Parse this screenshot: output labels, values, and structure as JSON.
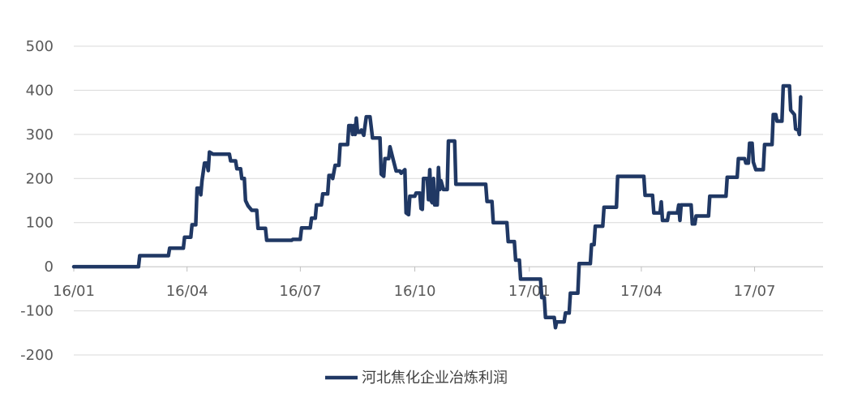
{
  "chart_data": {
    "type": "line",
    "title": "",
    "xlabel": "",
    "ylabel": "",
    "ylim": [
      -200,
      500
    ],
    "yticks": [
      -200,
      -100,
      0,
      100,
      200,
      300,
      400,
      500
    ],
    "x_ticks": [
      {
        "x": 0,
        "label": "16/01"
      },
      {
        "x": 91,
        "label": "16/04"
      },
      {
        "x": 182,
        "label": "16/07"
      },
      {
        "x": 274,
        "label": "16/10"
      },
      {
        "x": 366,
        "label": "17/01"
      },
      {
        "x": 456,
        "label": "17/04"
      },
      {
        "x": 547,
        "label": "17/07"
      }
    ],
    "xlim": [
      0,
      602
    ],
    "grid": true,
    "legend_position": "bottom",
    "colors": {
      "line": "#203864",
      "grid": "#d9d9d9"
    },
    "series": [
      {
        "name": "河北焦化企业冶炼利润",
        "points": [
          [
            0,
            0
          ],
          [
            52,
            0
          ],
          [
            53,
            25
          ],
          [
            76,
            25
          ],
          [
            77,
            42
          ],
          [
            88,
            42
          ],
          [
            89,
            67
          ],
          [
            94,
            67
          ],
          [
            95,
            95
          ],
          [
            98,
            95
          ],
          [
            99,
            178
          ],
          [
            101,
            178
          ],
          [
            102,
            163
          ],
          [
            103,
            195
          ],
          [
            105,
            235
          ],
          [
            107,
            235
          ],
          [
            108,
            218
          ],
          [
            109,
            260
          ],
          [
            112,
            255
          ],
          [
            125,
            255
          ],
          [
            126,
            240
          ],
          [
            130,
            240
          ],
          [
            131,
            222
          ],
          [
            134,
            222
          ],
          [
            135,
            200
          ],
          [
            137,
            200
          ],
          [
            138,
            150
          ],
          [
            140,
            138
          ],
          [
            143,
            128
          ],
          [
            147,
            128
          ],
          [
            148,
            87
          ],
          [
            154,
            87
          ],
          [
            155,
            60
          ],
          [
            175,
            60
          ],
          [
            176,
            62
          ],
          [
            182,
            62
          ],
          [
            183,
            88
          ],
          [
            190,
            88
          ],
          [
            191,
            110
          ],
          [
            194,
            110
          ],
          [
            195,
            140
          ],
          [
            199,
            140
          ],
          [
            200,
            165
          ],
          [
            204,
            165
          ],
          [
            205,
            207
          ],
          [
            207,
            207
          ],
          [
            208,
            200
          ],
          [
            210,
            230
          ],
          [
            213,
            230
          ],
          [
            214,
            277
          ],
          [
            220,
            277
          ],
          [
            221,
            320
          ],
          [
            223,
            320
          ],
          [
            224,
            300
          ],
          [
            225,
            320
          ],
          [
            226,
            300
          ],
          [
            227,
            337
          ],
          [
            228,
            305
          ],
          [
            230,
            305
          ],
          [
            231,
            310
          ],
          [
            233,
            298
          ],
          [
            235,
            340
          ],
          [
            238,
            340
          ],
          [
            240,
            292
          ],
          [
            246,
            292
          ],
          [
            247,
            210
          ],
          [
            249,
            205
          ],
          [
            250,
            245
          ],
          [
            253,
            245
          ],
          [
            254,
            272
          ],
          [
            256,
            250
          ],
          [
            259,
            217
          ],
          [
            262,
            217
          ],
          [
            263,
            212
          ],
          [
            266,
            220
          ],
          [
            267,
            122
          ],
          [
            269,
            118
          ],
          [
            270,
            160
          ],
          [
            274,
            160
          ],
          [
            275,
            167
          ],
          [
            278,
            167
          ],
          [
            279,
            132
          ],
          [
            280,
            130
          ],
          [
            281,
            200
          ],
          [
            284,
            200
          ],
          [
            285,
            152
          ],
          [
            286,
            220
          ],
          [
            287,
            150
          ],
          [
            288,
            145
          ],
          [
            289,
            200
          ],
          [
            290,
            140
          ],
          [
            292,
            140
          ],
          [
            293,
            225
          ],
          [
            294,
            175
          ],
          [
            295,
            195
          ],
          [
            297,
            175
          ],
          [
            300,
            175
          ],
          [
            301,
            285
          ],
          [
            306,
            285
          ],
          [
            307,
            187
          ],
          [
            331,
            187
          ],
          [
            332,
            148
          ],
          [
            336,
            148
          ],
          [
            337,
            100
          ],
          [
            348,
            100
          ],
          [
            349,
            57
          ],
          [
            354,
            57
          ],
          [
            355,
            15
          ],
          [
            358,
            15
          ],
          [
            359,
            -28
          ],
          [
            375,
            -28
          ],
          [
            376,
            -70
          ],
          [
            378,
            -70
          ],
          [
            379,
            -115
          ],
          [
            386,
            -115
          ],
          [
            387,
            -138
          ],
          [
            388,
            -125
          ],
          [
            394,
            -125
          ],
          [
            395,
            -105
          ],
          [
            398,
            -105
          ],
          [
            399,
            -60
          ],
          [
            405,
            -60
          ],
          [
            406,
            7
          ],
          [
            415,
            7
          ],
          [
            416,
            50
          ],
          [
            418,
            50
          ],
          [
            419,
            92
          ],
          [
            425,
            92
          ],
          [
            426,
            135
          ],
          [
            436,
            135
          ],
          [
            437,
            205
          ],
          [
            458,
            205
          ],
          [
            459,
            162
          ],
          [
            465,
            162
          ],
          [
            466,
            122
          ],
          [
            471,
            122
          ],
          [
            472,
            147
          ],
          [
            473,
            105
          ],
          [
            477,
            105
          ],
          [
            478,
            122
          ],
          [
            485,
            122
          ],
          [
            486,
            140
          ],
          [
            487,
            105
          ],
          [
            488,
            140
          ],
          [
            496,
            140
          ],
          [
            497,
            97
          ],
          [
            499,
            97
          ],
          [
            500,
            115
          ],
          [
            510,
            115
          ],
          [
            511,
            160
          ],
          [
            524,
            160
          ],
          [
            525,
            203
          ],
          [
            533,
            203
          ],
          [
            534,
            245
          ],
          [
            539,
            245
          ],
          [
            540,
            235
          ],
          [
            542,
            235
          ],
          [
            543,
            280
          ],
          [
            545,
            280
          ],
          [
            546,
            237
          ],
          [
            548,
            220
          ],
          [
            554,
            220
          ],
          [
            555,
            277
          ],
          [
            561,
            277
          ],
          [
            562,
            345
          ],
          [
            564,
            345
          ],
          [
            565,
            330
          ],
          [
            569,
            330
          ],
          [
            570,
            410
          ],
          [
            575,
            410
          ],
          [
            576,
            355
          ],
          [
            579,
            345
          ],
          [
            580,
            312
          ],
          [
            582,
            310
          ],
          [
            583,
            300
          ],
          [
            584,
            385
          ]
        ]
      }
    ]
  }
}
